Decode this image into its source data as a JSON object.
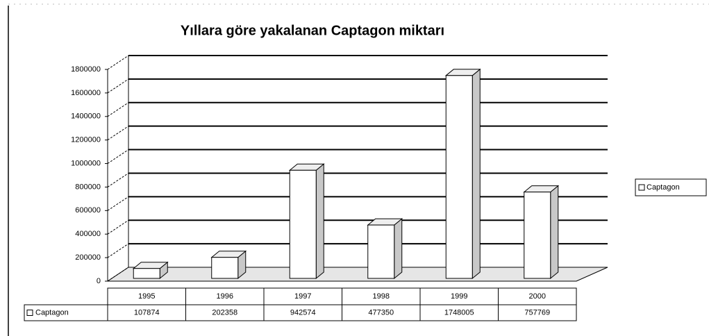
{
  "chart_data": {
    "type": "bar3d",
    "title": "Yıllara göre yakalanan Captagon miktarı",
    "categories": [
      "1995",
      "1996",
      "1997",
      "1998",
      "1999",
      "2000"
    ],
    "series": [
      {
        "name": "Captagon",
        "color": "#ffffff",
        "values": [
          107874,
          202358,
          942574,
          477350,
          1748005,
          757769
        ]
      }
    ],
    "ylim": [
      0,
      1800000
    ],
    "yticks": [
      0,
      200000,
      400000,
      600000,
      800000,
      1000000,
      1200000,
      1400000,
      1600000,
      1800000
    ],
    "grid": true,
    "legend": "right",
    "data_table": true
  }
}
